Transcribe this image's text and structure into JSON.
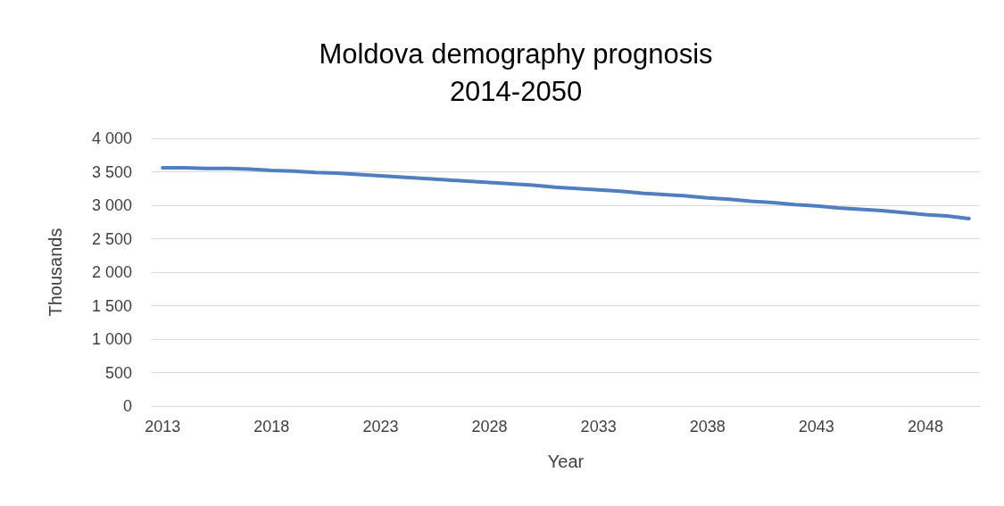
{
  "chart_data": {
    "type": "line",
    "title": "Moldova demography prognosis\n2014-2050",
    "xlabel": "Year",
    "ylabel": "Thousands",
    "categories": [
      "2013",
      null,
      null,
      null,
      null,
      "2018",
      null,
      null,
      null,
      null,
      "2023",
      null,
      null,
      null,
      null,
      "2028",
      null,
      null,
      null,
      null,
      "2033",
      null,
      null,
      null,
      null,
      "2038",
      null,
      null,
      null,
      null,
      "2043",
      null,
      null,
      null,
      null,
      "2048",
      null,
      null
    ],
    "series": [
      {
        "color": "#4f7fc0",
        "values": [
          3560,
          3560,
          3550,
          3550,
          3540,
          3520,
          3510,
          3490,
          3480,
          3460,
          3440,
          3420,
          3400,
          3380,
          3360,
          3340,
          3320,
          3300,
          3270,
          3250,
          3230,
          3210,
          3180,
          3160,
          3140,
          3110,
          3090,
          3060,
          3040,
          3010,
          2990,
          2960,
          2940,
          2920,
          2890,
          2860,
          2840,
          2800
        ]
      }
    ],
    "ylim": [
      0,
      4000
    ],
    "yticks": [
      0,
      500,
      {
        "value": 1000,
        "label": "1 000"
      },
      {
        "value": 1500,
        "label": "1 500"
      },
      {
        "value": 2000,
        "label": "2 000"
      },
      {
        "value": 2500,
        "label": "2 500"
      },
      {
        "value": 3000,
        "label": "3 000"
      },
      {
        "value": 3500,
        "label": "3 500"
      },
      {
        "value": 4000,
        "label": "4 000"
      }
    ],
    "grid": "y",
    "marker": "none",
    "line_style": "solid"
  }
}
